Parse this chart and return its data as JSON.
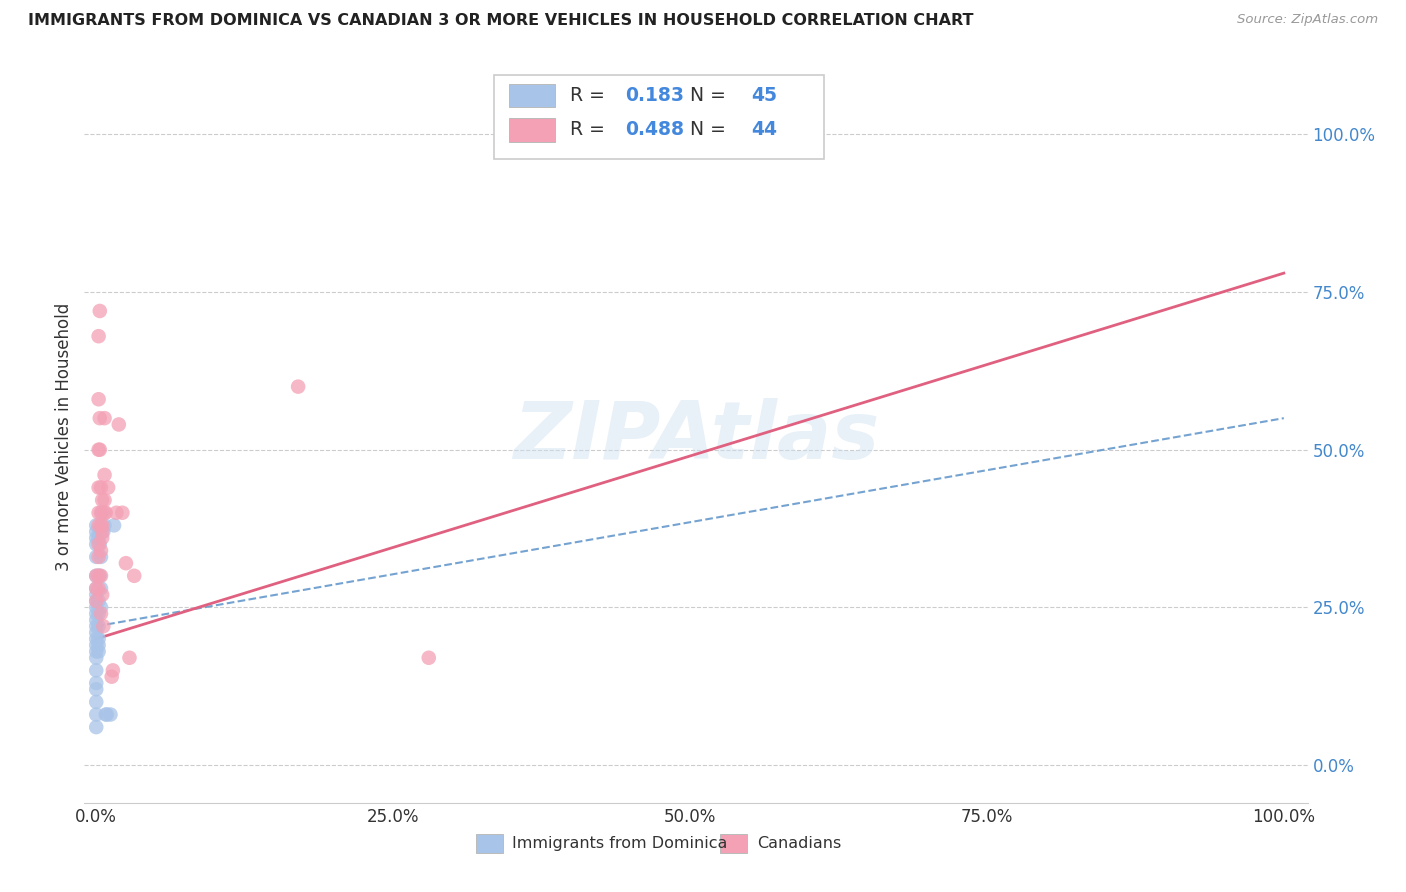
{
  "title": "IMMIGRANTS FROM DOMINICA VS CANADIAN 3 OR MORE VEHICLES IN HOUSEHOLD CORRELATION CHART",
  "source": "Source: ZipAtlas.com",
  "ylabel": "3 or more Vehicles in Household",
  "watermark": "ZIPAtlas",
  "blue_R": 0.183,
  "blue_N": 45,
  "pink_R": 0.488,
  "pink_N": 44,
  "blue_color": "#a8c4e8",
  "pink_color": "#f4a0b5",
  "blue_line_color": "#6699cc",
  "pink_line_color": "#e06080",
  "blue_scatter": [
    [
      0.0,
      0.38
    ],
    [
      0.0,
      0.37
    ],
    [
      0.0,
      0.36
    ],
    [
      0.0,
      0.35
    ],
    [
      0.0,
      0.33
    ],
    [
      0.0,
      0.3
    ],
    [
      0.0,
      0.28
    ],
    [
      0.0,
      0.27
    ],
    [
      0.0,
      0.26
    ],
    [
      0.0,
      0.25
    ],
    [
      0.0,
      0.24
    ],
    [
      0.0,
      0.23
    ],
    [
      0.0,
      0.22
    ],
    [
      0.0,
      0.21
    ],
    [
      0.0,
      0.2
    ],
    [
      0.0,
      0.19
    ],
    [
      0.0,
      0.18
    ],
    [
      0.0,
      0.17
    ],
    [
      0.0,
      0.15
    ],
    [
      0.0,
      0.13
    ],
    [
      0.0,
      0.12
    ],
    [
      0.0,
      0.1
    ],
    [
      0.0,
      0.08
    ],
    [
      0.0,
      0.06
    ],
    [
      0.002,
      0.36
    ],
    [
      0.002,
      0.3
    ],
    [
      0.002,
      0.26
    ],
    [
      0.002,
      0.24
    ],
    [
      0.002,
      0.22
    ],
    [
      0.002,
      0.2
    ],
    [
      0.002,
      0.19
    ],
    [
      0.002,
      0.18
    ],
    [
      0.003,
      0.37
    ],
    [
      0.003,
      0.35
    ],
    [
      0.003,
      0.3
    ],
    [
      0.004,
      0.33
    ],
    [
      0.004,
      0.28
    ],
    [
      0.004,
      0.25
    ],
    [
      0.005,
      0.4
    ],
    [
      0.006,
      0.37
    ],
    [
      0.007,
      0.38
    ],
    [
      0.008,
      0.08
    ],
    [
      0.009,
      0.08
    ],
    [
      0.012,
      0.08
    ],
    [
      0.015,
      0.38
    ]
  ],
  "pink_scatter": [
    [
      0.0,
      0.3
    ],
    [
      0.0,
      0.28
    ],
    [
      0.0,
      0.26
    ],
    [
      0.002,
      0.68
    ],
    [
      0.002,
      0.58
    ],
    [
      0.002,
      0.5
    ],
    [
      0.002,
      0.44
    ],
    [
      0.002,
      0.4
    ],
    [
      0.002,
      0.38
    ],
    [
      0.002,
      0.35
    ],
    [
      0.002,
      0.33
    ],
    [
      0.002,
      0.3
    ],
    [
      0.002,
      0.28
    ],
    [
      0.003,
      0.72
    ],
    [
      0.003,
      0.55
    ],
    [
      0.003,
      0.5
    ],
    [
      0.004,
      0.44
    ],
    [
      0.004,
      0.4
    ],
    [
      0.004,
      0.38
    ],
    [
      0.004,
      0.34
    ],
    [
      0.004,
      0.3
    ],
    [
      0.004,
      0.24
    ],
    [
      0.005,
      0.38
    ],
    [
      0.005,
      0.36
    ],
    [
      0.005,
      0.42
    ],
    [
      0.005,
      0.37
    ],
    [
      0.005,
      0.27
    ],
    [
      0.006,
      0.22
    ],
    [
      0.007,
      0.55
    ],
    [
      0.007,
      0.46
    ],
    [
      0.007,
      0.42
    ],
    [
      0.007,
      0.4
    ],
    [
      0.008,
      0.4
    ],
    [
      0.01,
      0.44
    ],
    [
      0.013,
      0.14
    ],
    [
      0.014,
      0.15
    ],
    [
      0.017,
      0.4
    ],
    [
      0.019,
      0.54
    ],
    [
      0.022,
      0.4
    ],
    [
      0.025,
      0.32
    ],
    [
      0.028,
      0.17
    ],
    [
      0.032,
      0.3
    ],
    [
      0.28,
      0.17
    ],
    [
      0.17,
      0.6
    ]
  ],
  "ytick_labels": [
    "0.0%",
    "25.0%",
    "50.0%",
    "75.0%",
    "100.0%"
  ],
  "ytick_values": [
    0.0,
    0.25,
    0.5,
    0.75,
    1.0
  ],
  "xtick_labels": [
    "0.0%",
    "25.0%",
    "50.0%",
    "75.0%",
    "100.0%"
  ],
  "xtick_values": [
    0.0,
    0.25,
    0.5,
    0.75,
    1.0
  ],
  "xlim": [
    -0.01,
    1.02
  ],
  "ylim": [
    -0.06,
    1.1
  ],
  "blue_line": [
    0.0,
    1.0,
    0.22,
    0.55
  ],
  "pink_line": [
    0.0,
    1.0,
    0.2,
    0.78
  ]
}
